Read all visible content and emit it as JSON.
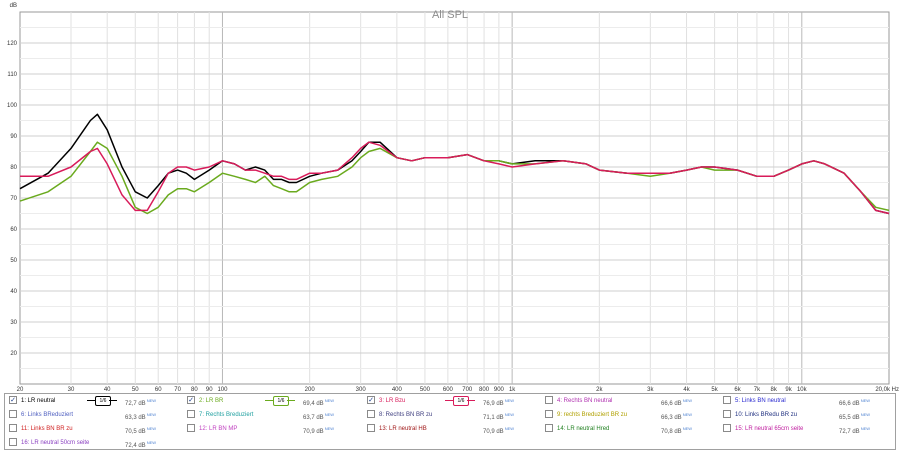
{
  "chart_data": {
    "type": "line",
    "title": "All SPL",
    "y_unit": "dB",
    "x_unit": "Hz",
    "xscale": "log",
    "xlim": [
      20,
      20000
    ],
    "ylim": [
      10,
      130
    ],
    "grid": true,
    "y_ticks": [
      "120",
      "110",
      "100",
      "90",
      "80",
      "70",
      "60",
      "50",
      "40",
      "30",
      "20"
    ],
    "x_ticks": [
      {
        "v": 20,
        "t": "20"
      },
      {
        "v": 30,
        "t": "30"
      },
      {
        "v": 40,
        "t": "40"
      },
      {
        "v": 50,
        "t": "50"
      },
      {
        "v": 60,
        "t": "60"
      },
      {
        "v": 70,
        "t": "70"
      },
      {
        "v": 80,
        "t": "80"
      },
      {
        "v": 90,
        "t": "90"
      },
      {
        "v": 100,
        "t": "100"
      },
      {
        "v": 200,
        "t": "200"
      },
      {
        "v": 300,
        "t": "300"
      },
      {
        "v": 400,
        "t": "400"
      },
      {
        "v": 500,
        "t": "500"
      },
      {
        "v": 600,
        "t": "600"
      },
      {
        "v": 700,
        "t": "700"
      },
      {
        "v": 800,
        "t": "800"
      },
      {
        "v": 900,
        "t": "900"
      },
      {
        "v": 1000,
        "t": "1k"
      },
      {
        "v": 2000,
        "t": "2k"
      },
      {
        "v": 3000,
        "t": "3k"
      },
      {
        "v": 4000,
        "t": "4k"
      },
      {
        "v": 5000,
        "t": "5k"
      },
      {
        "v": 6000,
        "t": "6k"
      },
      {
        "v": 7000,
        "t": "7k"
      },
      {
        "v": 8000,
        "t": "8k"
      },
      {
        "v": 9000,
        "t": "9k"
      },
      {
        "v": 10000,
        "t": "10k"
      },
      {
        "v": 20000,
        "t": "20,0k Hz"
      }
    ],
    "series": [
      {
        "name": "1: LR neutral",
        "color": "#000000",
        "points": [
          [
            20,
            73
          ],
          [
            25,
            78
          ],
          [
            30,
            86
          ],
          [
            35,
            95
          ],
          [
            37,
            97
          ],
          [
            40,
            92
          ],
          [
            45,
            80
          ],
          [
            50,
            72
          ],
          [
            55,
            70
          ],
          [
            60,
            74
          ],
          [
            65,
            78
          ],
          [
            70,
            79
          ],
          [
            75,
            78
          ],
          [
            80,
            76
          ],
          [
            90,
            79
          ],
          [
            100,
            82
          ],
          [
            110,
            81
          ],
          [
            120,
            79
          ],
          [
            130,
            80
          ],
          [
            140,
            79
          ],
          [
            150,
            76
          ],
          [
            160,
            76
          ],
          [
            170,
            75
          ],
          [
            180,
            75
          ],
          [
            200,
            77
          ],
          [
            220,
            78
          ],
          [
            250,
            79
          ],
          [
            280,
            82
          ],
          [
            300,
            85
          ],
          [
            320,
            88
          ],
          [
            350,
            88
          ],
          [
            400,
            83
          ],
          [
            450,
            82
          ],
          [
            500,
            83
          ],
          [
            600,
            83
          ],
          [
            700,
            84
          ],
          [
            800,
            82
          ],
          [
            900,
            82
          ],
          [
            1000,
            81
          ],
          [
            1200,
            82
          ],
          [
            1500,
            82
          ],
          [
            1800,
            81
          ],
          [
            2000,
            79
          ],
          [
            2500,
            78
          ],
          [
            3000,
            78
          ],
          [
            3500,
            78
          ],
          [
            4000,
            79
          ],
          [
            4500,
            80
          ],
          [
            5000,
            80
          ],
          [
            6000,
            79
          ],
          [
            7000,
            77
          ],
          [
            8000,
            77
          ],
          [
            9000,
            79
          ],
          [
            10000,
            81
          ],
          [
            11000,
            82
          ],
          [
            12000,
            81
          ],
          [
            14000,
            78
          ],
          [
            16000,
            72
          ],
          [
            18000,
            66
          ],
          [
            20000,
            65
          ]
        ]
      },
      {
        "name": "2: LR BR",
        "color": "#6aaa1e",
        "points": [
          [
            20,
            69
          ],
          [
            25,
            72
          ],
          [
            30,
            77
          ],
          [
            35,
            85
          ],
          [
            37,
            88
          ],
          [
            40,
            86
          ],
          [
            45,
            77
          ],
          [
            50,
            67
          ],
          [
            55,
            65
          ],
          [
            60,
            67
          ],
          [
            65,
            71
          ],
          [
            70,
            73
          ],
          [
            75,
            73
          ],
          [
            80,
            72
          ],
          [
            90,
            75
          ],
          [
            100,
            78
          ],
          [
            110,
            77
          ],
          [
            120,
            76
          ],
          [
            130,
            75
          ],
          [
            140,
            77
          ],
          [
            150,
            74
          ],
          [
            160,
            73
          ],
          [
            170,
            72
          ],
          [
            180,
            72
          ],
          [
            200,
            75
          ],
          [
            220,
            76
          ],
          [
            250,
            77
          ],
          [
            280,
            80
          ],
          [
            300,
            83
          ],
          [
            320,
            85
          ],
          [
            350,
            86
          ],
          [
            400,
            83
          ],
          [
            450,
            82
          ],
          [
            500,
            83
          ],
          [
            600,
            83
          ],
          [
            700,
            84
          ],
          [
            800,
            82
          ],
          [
            900,
            82
          ],
          [
            1000,
            81
          ],
          [
            1200,
            81
          ],
          [
            1500,
            82
          ],
          [
            1800,
            81
          ],
          [
            2000,
            79
          ],
          [
            2500,
            78
          ],
          [
            3000,
            77
          ],
          [
            3500,
            78
          ],
          [
            4000,
            79
          ],
          [
            4500,
            80
          ],
          [
            5000,
            79
          ],
          [
            6000,
            79
          ],
          [
            7000,
            77
          ],
          [
            8000,
            77
          ],
          [
            9000,
            79
          ],
          [
            10000,
            81
          ],
          [
            11000,
            82
          ],
          [
            12000,
            81
          ],
          [
            14000,
            78
          ],
          [
            16000,
            72
          ],
          [
            18000,
            67
          ],
          [
            20000,
            66
          ]
        ]
      },
      {
        "name": "3: LR Bzu",
        "color": "#d81b5a",
        "points": [
          [
            20,
            77
          ],
          [
            25,
            77
          ],
          [
            30,
            80
          ],
          [
            35,
            85
          ],
          [
            37,
            86
          ],
          [
            40,
            81
          ],
          [
            45,
            71
          ],
          [
            50,
            66
          ],
          [
            55,
            66
          ],
          [
            60,
            72
          ],
          [
            65,
            78
          ],
          [
            70,
            80
          ],
          [
            75,
            80
          ],
          [
            80,
            79
          ],
          [
            90,
            80
          ],
          [
            100,
            82
          ],
          [
            110,
            81
          ],
          [
            120,
            79
          ],
          [
            130,
            79
          ],
          [
            140,
            78
          ],
          [
            150,
            77
          ],
          [
            160,
            77
          ],
          [
            170,
            76
          ],
          [
            180,
            76
          ],
          [
            200,
            78
          ],
          [
            220,
            78
          ],
          [
            250,
            79
          ],
          [
            280,
            83
          ],
          [
            300,
            86
          ],
          [
            320,
            88
          ],
          [
            350,
            87
          ],
          [
            400,
            83
          ],
          [
            450,
            82
          ],
          [
            500,
            83
          ],
          [
            600,
            83
          ],
          [
            700,
            84
          ],
          [
            800,
            82
          ],
          [
            900,
            81
          ],
          [
            1000,
            80
          ],
          [
            1200,
            81
          ],
          [
            1500,
            82
          ],
          [
            1800,
            81
          ],
          [
            2000,
            79
          ],
          [
            2500,
            78
          ],
          [
            3000,
            78
          ],
          [
            3500,
            78
          ],
          [
            4000,
            79
          ],
          [
            4500,
            80
          ],
          [
            5000,
            80
          ],
          [
            6000,
            79
          ],
          [
            7000,
            77
          ],
          [
            8000,
            77
          ],
          [
            9000,
            79
          ],
          [
            10000,
            81
          ],
          [
            11000,
            82
          ],
          [
            12000,
            81
          ],
          [
            14000,
            78
          ],
          [
            16000,
            72
          ],
          [
            18000,
            66
          ],
          [
            20000,
            65
          ]
        ]
      }
    ]
  },
  "legend": {
    "rows": [
      [
        {
          "checked": "✓",
          "label": "1: LR neutral",
          "color": "#000000",
          "value": "72,7 dB",
          "badge": "NEW",
          "smoothing": "1/6",
          "line": "#000000"
        },
        {
          "checked": "✓",
          "label": "2: LR BR",
          "color": "#6aaa1e",
          "value": "69,4 dB",
          "badge": "NEW",
          "smoothing": "1/6",
          "line": "#6aaa1e"
        },
        {
          "checked": "✓",
          "label": "3: LR Bzu",
          "color": "#d81b5a",
          "value": "76,9 dB",
          "badge": "NEW",
          "smoothing": "1/6",
          "line": "#d81b5a"
        },
        {
          "checked": "",
          "label": "4: Rechts BN neutral",
          "color": "#b030b0",
          "value": "66,6 dB",
          "badge": "NEW"
        },
        {
          "checked": "",
          "label": "5: Links BN neutral",
          "color": "#2a2ad0",
          "value": "66,6 dB",
          "badge": "NEW"
        }
      ],
      [
        {
          "checked": "",
          "label": "6: Links BReduziert",
          "color": "#5060c0",
          "value": "63,3 dB",
          "badge": "NEW"
        },
        {
          "checked": "",
          "label": "7: Rechts Breduziert",
          "color": "#20a0a0",
          "value": "63,7 dB",
          "badge": "NEW"
        },
        {
          "checked": "",
          "label": "8: Rechts BN BR zu",
          "color": "#404080",
          "value": "71,1 dB",
          "badge": "NEW"
        },
        {
          "checked": "",
          "label": "9: rechts Breduziert BR zu",
          "color": "#b0a000",
          "value": "66,3 dB",
          "badge": "NEW"
        },
        {
          "checked": "",
          "label": "10: Links BRedu BR zu",
          "color": "#203080",
          "value": "65,5 dB",
          "badge": "NEW"
        }
      ],
      [
        {
          "checked": "",
          "label": "11: Links BN BR zu",
          "color": "#d02020",
          "value": "70,5 dB",
          "badge": "NEW"
        },
        {
          "checked": "",
          "label": "12: LR BN MP",
          "color": "#c040c0",
          "value": "70,9 dB",
          "badge": "NEW"
        },
        {
          "checked": "",
          "label": "13: LR neutral HB",
          "color": "#a01818",
          "value": "70,9 dB",
          "badge": "NEW"
        },
        {
          "checked": "",
          "label": "14: LR neutral Hred",
          "color": "#208020",
          "value": "70,8 dB",
          "badge": "NEW"
        },
        {
          "checked": "",
          "label": "15: LR neutral 65cm seite",
          "color": "#c020a0",
          "value": "72,7 dB",
          "badge": "NEW"
        }
      ],
      [
        {
          "checked": "",
          "label": "16: LR neutral 50cm seite",
          "color": "#8a40c0",
          "value": "72,4 dB",
          "badge": "NEW"
        }
      ]
    ]
  }
}
